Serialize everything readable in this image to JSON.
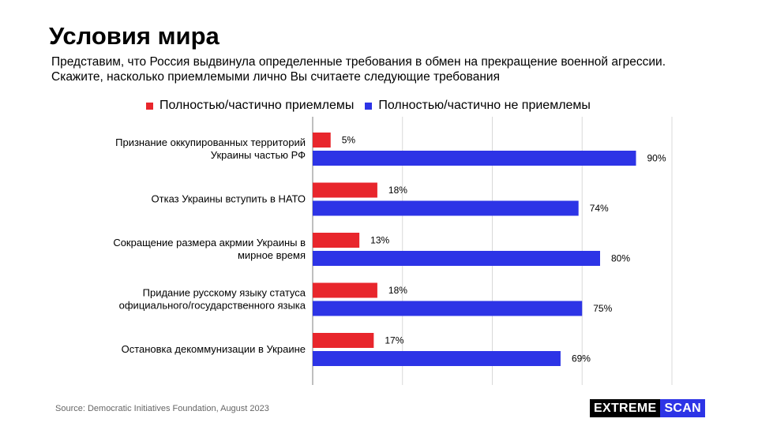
{
  "title": "Условия мира",
  "subtitle": "Представим, что Россия выдвинула  определенные  требования в обмен на прекращение  военной агрессии.\nСкажите,  насколько приемлемыми лично  Вы считаете следующие  требования",
  "colors": {
    "accepted": "#e8262c",
    "not_accepted": "#2d34e6",
    "grid": "#d9d9d9",
    "axis": "#7f7f7f"
  },
  "chart_data": {
    "type": "bar",
    "orientation": "horizontal",
    "categories": [
      [
        "Признание оккупированных территорий",
        "Украины частью РФ"
      ],
      [
        "Отказ Украины вступить в НАТО"
      ],
      [
        "Сокращение размера акрмии Украины в",
        "мирное время"
      ],
      [
        "Придание русскому языку статуса",
        "официального/государственного языка"
      ],
      [
        "Остановка декоммунизации в Украине"
      ]
    ],
    "series": [
      {
        "name": "Полностью/частично приемлемы",
        "color": "#e8262c",
        "values": [
          5,
          18,
          13,
          18,
          17
        ],
        "labels": [
          "5%",
          "18%",
          "13%",
          "18%",
          "17%"
        ]
      },
      {
        "name": "Полностью/частично не приемлемы",
        "color": "#2d34e6",
        "values": [
          90,
          74,
          80,
          75,
          69
        ],
        "labels": [
          "90%",
          "74%",
          "80%",
          "75%",
          "69%"
        ]
      }
    ],
    "xlim": [
      0,
      100
    ],
    "grid": true,
    "legend": "top"
  },
  "source": "Source: Democratic Initiatives Foundation, August 2023",
  "logo": {
    "part1": "EXTREME",
    "part2": "SCAN"
  }
}
